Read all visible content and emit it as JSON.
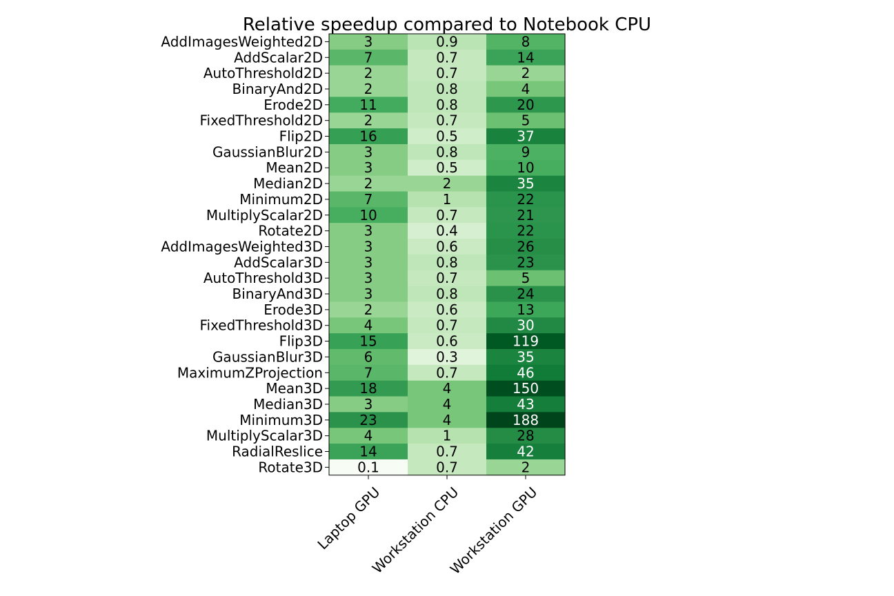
{
  "chart_data": {
    "type": "heatmap",
    "title": "Relative speedup compared to Notebook CPU",
    "columns": [
      "Laptop GPU",
      "Workstation CPU",
      "Workstation GPU"
    ],
    "rows": [
      "AddImagesWeighted2D",
      "AddScalar2D",
      "AutoThreshold2D",
      "BinaryAnd2D",
      "Erode2D",
      "FixedThreshold2D",
      "Flip2D",
      "GaussianBlur2D",
      "Mean2D",
      "Median2D",
      "Minimum2D",
      "MultiplyScalar2D",
      "Rotate2D",
      "AddImagesWeighted3D",
      "AddScalar3D",
      "AutoThreshold3D",
      "BinaryAnd3D",
      "Erode3D",
      "FixedThreshold3D",
      "Flip3D",
      "GaussianBlur3D",
      "MaximumZProjection",
      "Mean3D",
      "Median3D",
      "Minimum3D",
      "MultiplyScalar3D",
      "RadialReslice",
      "Rotate3D"
    ],
    "labels": [
      [
        "3",
        "0.9",
        "8"
      ],
      [
        "7",
        "0.7",
        "14"
      ],
      [
        "2",
        "0.7",
        "2"
      ],
      [
        "2",
        "0.8",
        "4"
      ],
      [
        "11",
        "0.8",
        "20"
      ],
      [
        "2",
        "0.7",
        "5"
      ],
      [
        "16",
        "0.5",
        "37"
      ],
      [
        "3",
        "0.8",
        "9"
      ],
      [
        "3",
        "0.5",
        "10"
      ],
      [
        "2",
        "2",
        "35"
      ],
      [
        "7",
        "1",
        "22"
      ],
      [
        "10",
        "0.7",
        "21"
      ],
      [
        "3",
        "0.4",
        "22"
      ],
      [
        "3",
        "0.6",
        "26"
      ],
      [
        "3",
        "0.8",
        "23"
      ],
      [
        "3",
        "0.7",
        "5"
      ],
      [
        "3",
        "0.8",
        "24"
      ],
      [
        "2",
        "0.6",
        "13"
      ],
      [
        "4",
        "0.7",
        "30"
      ],
      [
        "15",
        "0.6",
        "119"
      ],
      [
        "6",
        "0.3",
        "35"
      ],
      [
        "7",
        "0.7",
        "46"
      ],
      [
        "18",
        "4",
        "150"
      ],
      [
        "3",
        "4",
        "43"
      ],
      [
        "23",
        "4",
        "188"
      ],
      [
        "4",
        "1",
        "28"
      ],
      [
        "14",
        "0.7",
        "42"
      ],
      [
        "0.1",
        "0.7",
        "2"
      ]
    ],
    "colormap": "Greens",
    "color_scale": "log",
    "grid": false,
    "legend": "none"
  }
}
